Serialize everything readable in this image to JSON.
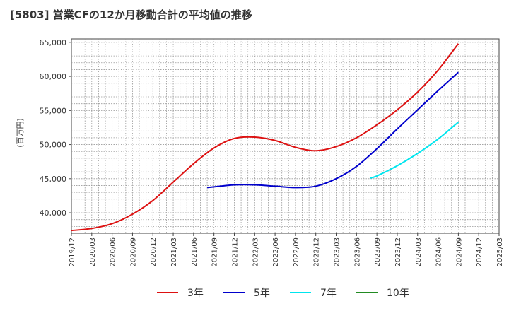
{
  "chart_data": {
    "type": "line",
    "title": "[5803]  営業CFの12か月移動合計の平均値の推移",
    "ylabel": "(百万円)",
    "xlabel": "",
    "ylim": [
      37000,
      65500
    ],
    "yticks": [
      40000,
      45000,
      50000,
      55000,
      60000,
      65000
    ],
    "ytick_labels": [
      "40,000",
      "45,000",
      "50,000",
      "55,000",
      "60,000",
      "65,000"
    ],
    "xtick_labels": [
      "2019/12",
      "2020/03",
      "2020/06",
      "2020/09",
      "2020/12",
      "2021/03",
      "2021/06",
      "2021/09",
      "2021/12",
      "2022/03",
      "2022/06",
      "2022/09",
      "2022/12",
      "2023/03",
      "2023/06",
      "2023/09",
      "2023/12",
      "2024/03",
      "2024/06",
      "2024/09",
      "2024/12",
      "2025/03"
    ],
    "grid": true,
    "legend_position": "bottom",
    "series": [
      {
        "name": "3年",
        "color": "#dd1111",
        "x": [
          "2019/12",
          "2020/03",
          "2020/06",
          "2020/09",
          "2020/12",
          "2021/03",
          "2021/06",
          "2021/09",
          "2021/12",
          "2022/03",
          "2022/06",
          "2022/09",
          "2022/12",
          "2023/03",
          "2023/06",
          "2023/09",
          "2023/12",
          "2024/03",
          "2024/06",
          "2024/09"
        ],
        "values": [
          37400,
          37700,
          38400,
          39800,
          41800,
          44500,
          47200,
          49500,
          50900,
          51100,
          50600,
          49600,
          49100,
          49700,
          51000,
          52900,
          55100,
          57700,
          60900,
          64800
        ]
      },
      {
        "name": "5年",
        "color": "#0000cc",
        "x": [
          "2021/08",
          "2021/09",
          "2021/12",
          "2022/03",
          "2022/06",
          "2022/09",
          "2022/12",
          "2023/03",
          "2023/06",
          "2023/09",
          "2023/12",
          "2024/03",
          "2024/06",
          "2024/09"
        ],
        "values": [
          43700,
          43800,
          44100,
          44100,
          43900,
          43700,
          43900,
          45000,
          46800,
          49400,
          52300,
          55100,
          57900,
          60600
        ]
      },
      {
        "name": "7年",
        "color": "#00e5ee",
        "x": [
          "2023/08",
          "2023/09",
          "2023/12",
          "2024/03",
          "2024/06",
          "2024/09"
        ],
        "values": [
          45100,
          45400,
          46900,
          48700,
          50800,
          53300
        ]
      },
      {
        "name": "10年",
        "color": "#228b22",
        "x": [],
        "values": []
      }
    ]
  }
}
